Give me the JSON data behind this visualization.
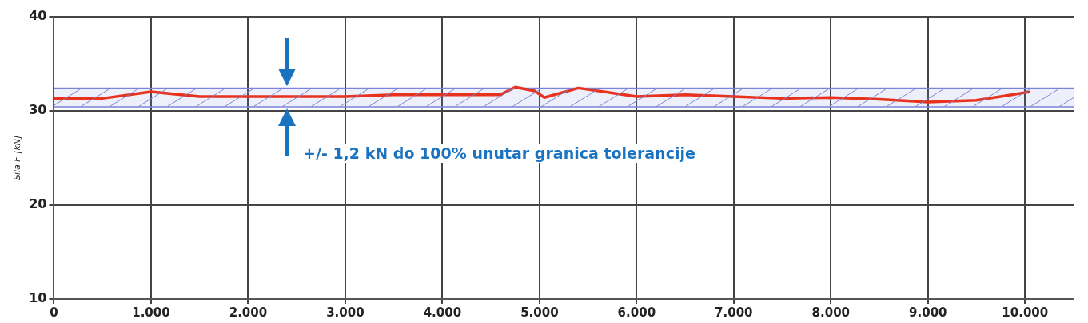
{
  "chart_data": {
    "type": "line",
    "ylabel": "Sila F [kN]",
    "x": [
      0,
      500,
      1000,
      1500,
      2000,
      3000,
      3500,
      4000,
      4600,
      4750,
      4950,
      5050,
      5400,
      6000,
      6500,
      7000,
      7500,
      8000,
      8500,
      9000,
      9500,
      10050
    ],
    "series": [
      {
        "color": "#e8321e",
        "values": [
          31.3,
          31.3,
          32.0,
          31.5,
          31.5,
          31.5,
          31.7,
          31.7,
          31.7,
          32.5,
          32.1,
          31.4,
          32.4,
          31.5,
          31.7,
          31.5,
          31.3,
          31.4,
          31.2,
          30.9,
          31.1,
          32.0
        ]
      }
    ],
    "xlim": [
      0,
      10500
    ],
    "xticks": [
      0,
      {
        "value": 1000,
        "label": "1.000"
      },
      {
        "value": 2000,
        "label": "2.000"
      },
      {
        "value": 3000,
        "label": "3.000"
      },
      {
        "value": 4000,
        "label": "4.000"
      },
      {
        "value": 5000,
        "label": "5.000"
      },
      {
        "value": 6000,
        "label": "6.000"
      },
      {
        "value": 7000,
        "label": "7.000"
      },
      {
        "value": 8000,
        "label": "8.000"
      },
      {
        "value": 9000,
        "label": "9.000"
      },
      {
        "value": 10000,
        "label": "10.000"
      }
    ],
    "ylim": [
      10,
      40
    ],
    "yticks": [
      10,
      20,
      30,
      40
    ],
    "bands": [
      {
        "axis": "y",
        "from": 30.4,
        "to": 32.4,
        "color": "#7b84d6"
      }
    ],
    "ref_lines": [
      {
        "axis": "y",
        "value": 30.4,
        "color": "#7b84d6"
      },
      {
        "axis": "y",
        "value": 32.4,
        "color": "#7b84d6"
      }
    ],
    "annotations": [
      "+/- 1,2 kN do 100% unutar granica tolerancije"
    ],
    "grid": true,
    "legend": false,
    "marker": "none",
    "line_style": "solid"
  }
}
